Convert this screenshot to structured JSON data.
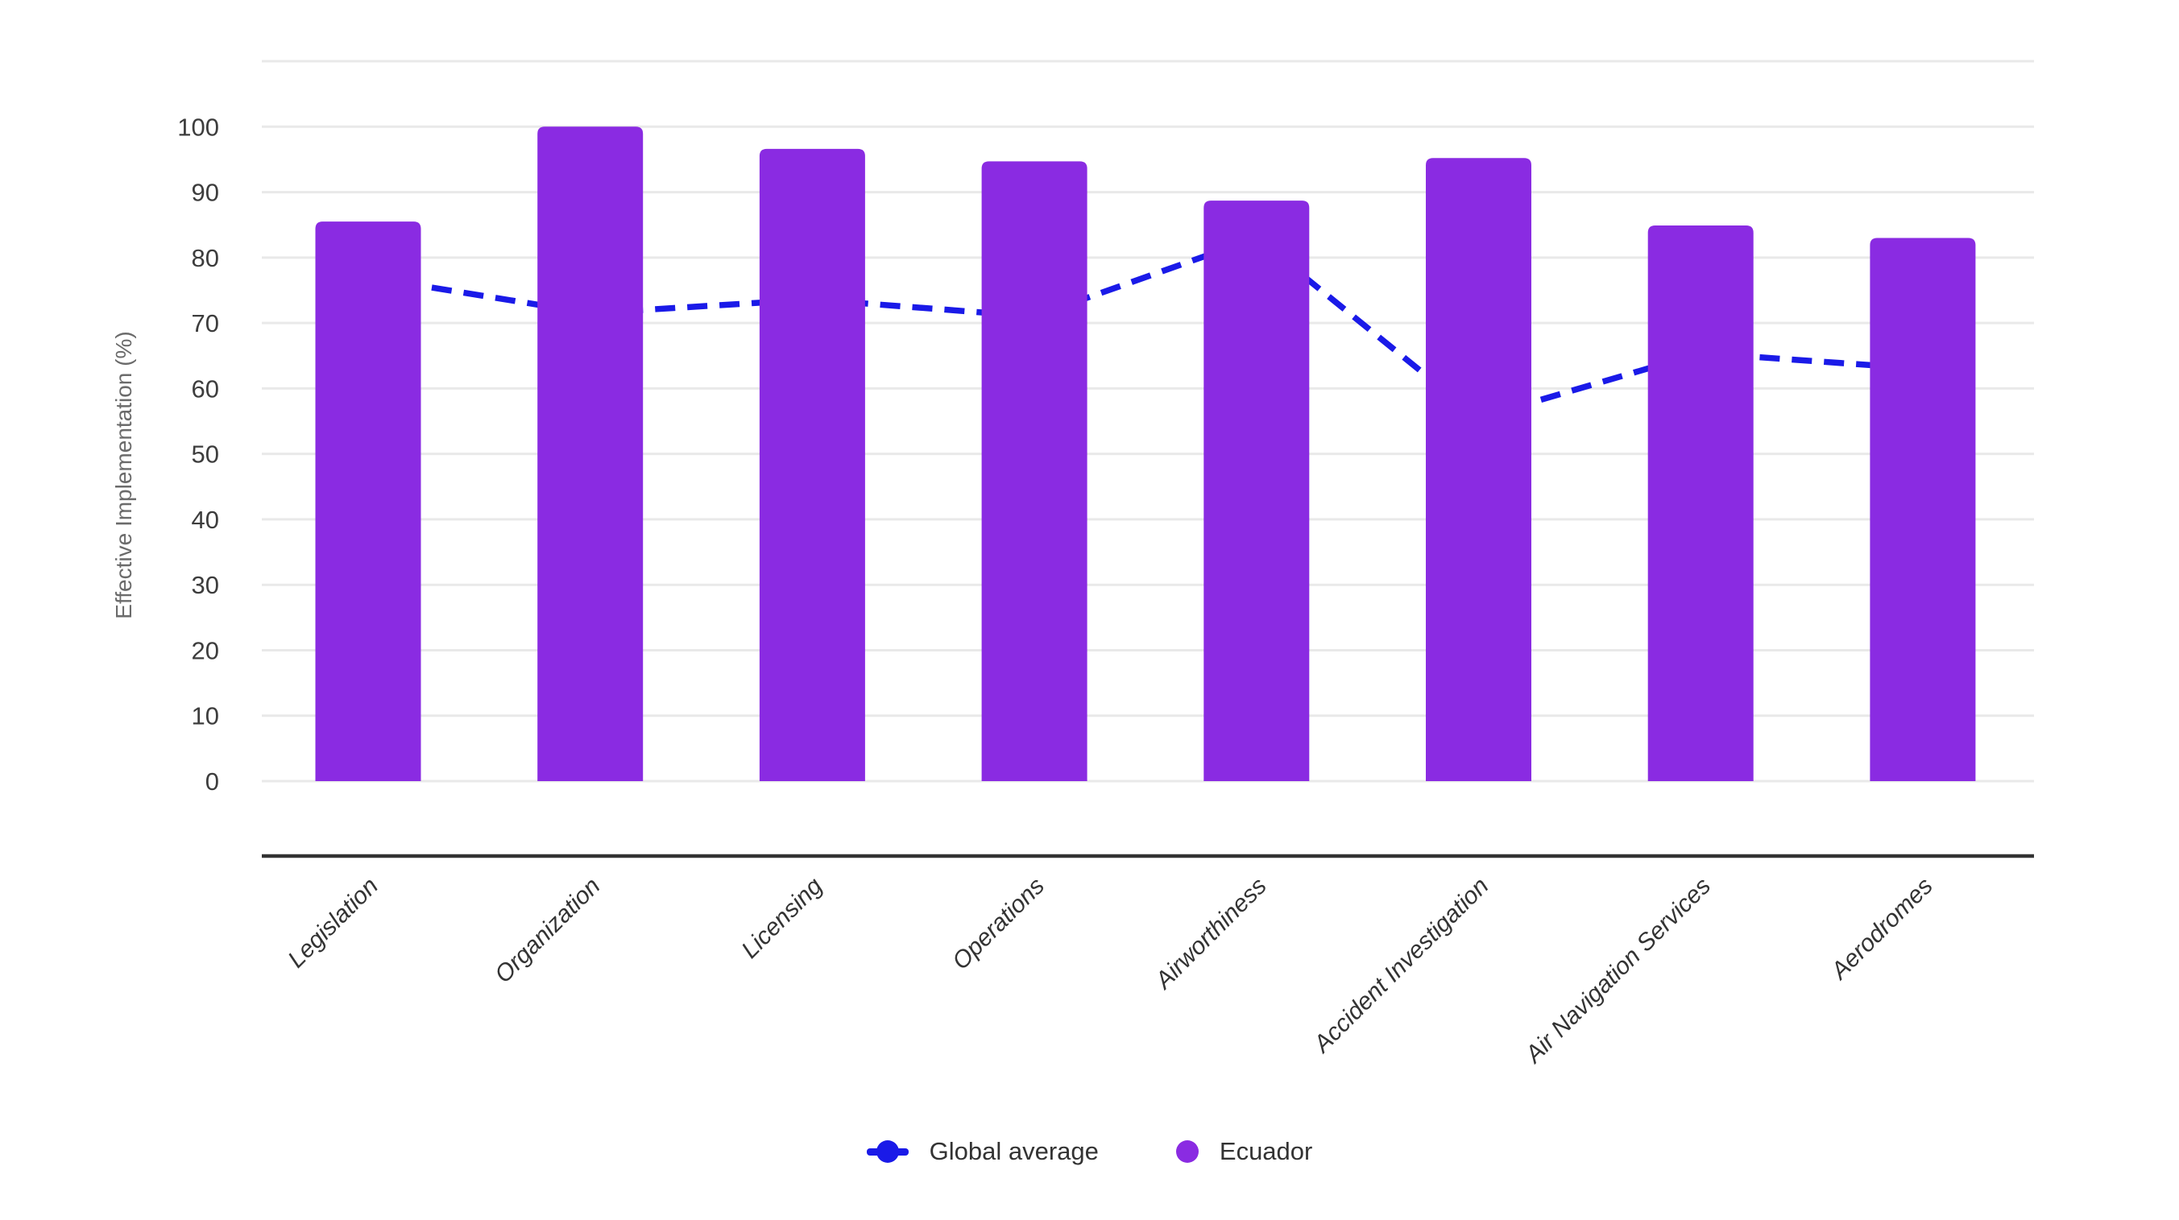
{
  "chart_data": {
    "type": "bar",
    "title": "",
    "xlabel": "",
    "ylabel": "Effective Implementation (%)",
    "categories": [
      "Legislation",
      "Organization",
      "Licensing",
      "Operations",
      "Airworthiness",
      "Accident Investigation",
      "Air Navigation Services",
      "Aerodromes"
    ],
    "series": [
      {
        "name": "Ecuador",
        "type": "bar",
        "color": "#8A2BE2",
        "values": [
          85.5,
          100,
          96.6,
          94.7,
          88.7,
          95.2,
          84.9,
          83.0
        ]
      },
      {
        "name": "Global average",
        "type": "line",
        "line_style": "dashed",
        "color": "#1A1AE8",
        "values": [
          77.0,
          71.5,
          73.6,
          71.0,
          83.0,
          55.5,
          65.4,
          63.0
        ]
      }
    ],
    "ylim": [
      0,
      110
    ],
    "ytick_labels": [
      "0",
      "10",
      "20",
      "30",
      "40",
      "50",
      "60",
      "70",
      "80",
      "90",
      "100"
    ],
    "grid": true,
    "gridline_color": "#e9e9e9",
    "axis_line_color": "#333333",
    "tick_label_color": "#3d3d3d",
    "category_label_color": "#333333",
    "axis_title_color": "#6b6b6b",
    "legend_position": "bottom"
  },
  "legend": {
    "items": [
      {
        "label": "Global average",
        "marker": "dashed-line-with-dot",
        "color": "#1A1AE8"
      },
      {
        "label": "Ecuador",
        "marker": "circle",
        "color": "#8A2BE2"
      }
    ]
  }
}
